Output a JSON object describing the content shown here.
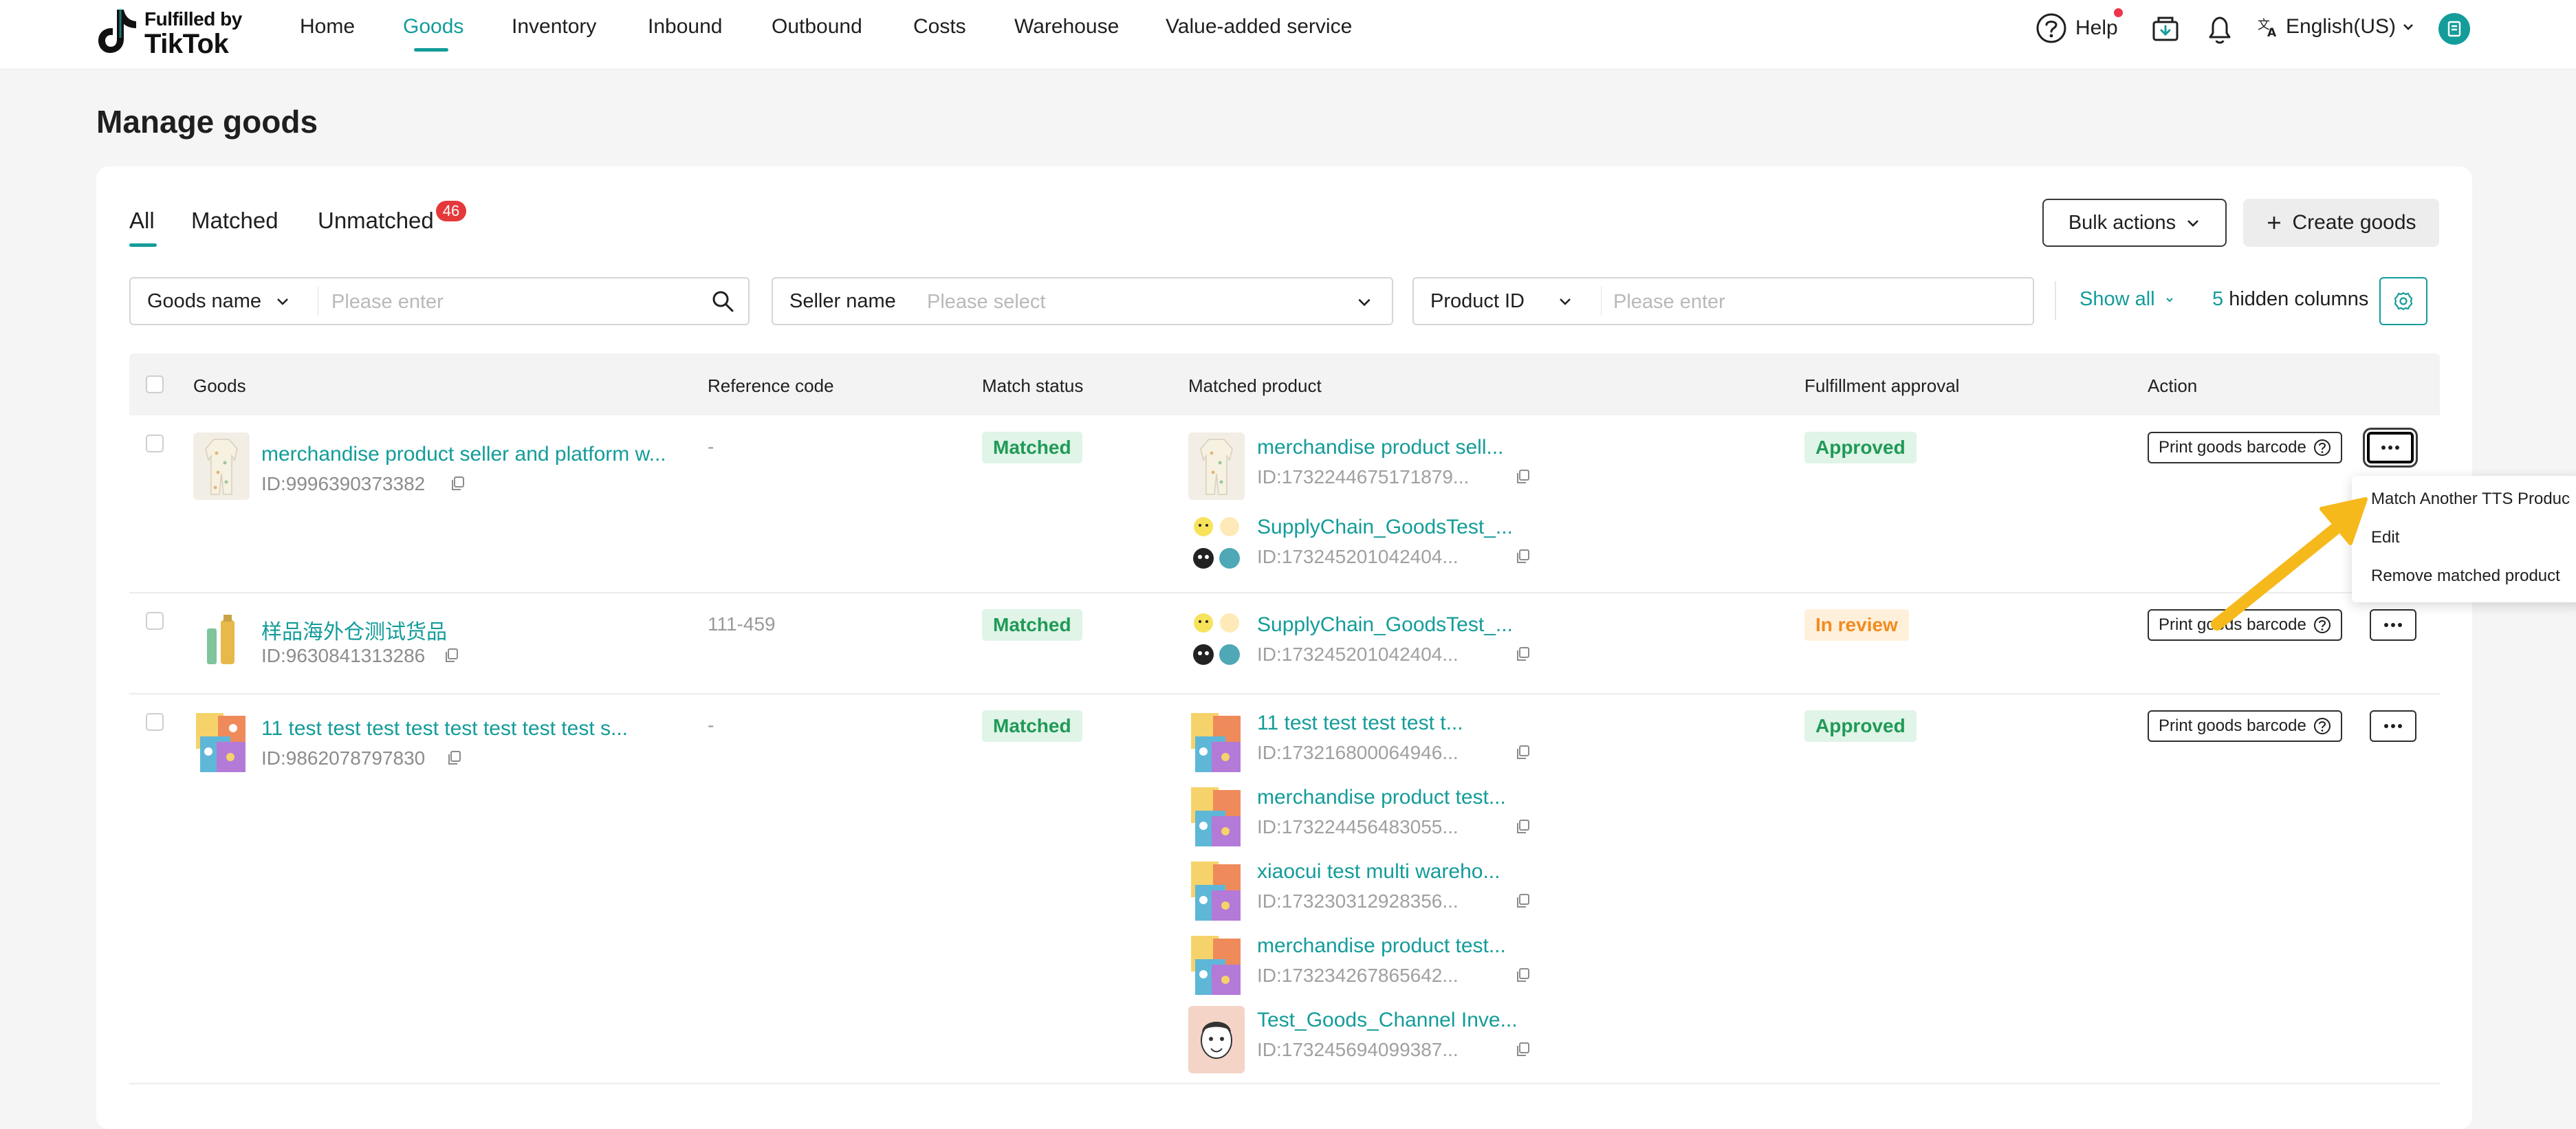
{
  "brand": {
    "line1": "Fulfilled by",
    "line2": "TikTok"
  },
  "nav": {
    "items": [
      "Home",
      "Goods",
      "Inventory",
      "Inbound",
      "Outbound",
      "Costs",
      "Warehouse",
      "Value-added service"
    ],
    "active": "Goods",
    "help": "Help",
    "language": "English(US)"
  },
  "page": {
    "title": "Manage goods"
  },
  "tabs": {
    "all": "All",
    "matched": "Matched",
    "unmatched": "Unmatched",
    "unmatched_count": "46"
  },
  "actions": {
    "bulk": "Bulk actions",
    "create": "Create goods"
  },
  "filters": {
    "goods_field": "Goods name",
    "goods_placeholder": "Please enter",
    "seller_field": "Seller name",
    "seller_placeholder": "Please select",
    "product_field": "Product ID",
    "product_placeholder": "Please enter",
    "show_all": "Show all",
    "hidden_count": "5",
    "hidden_label": "hidden columns"
  },
  "table": {
    "columns": [
      "Goods",
      "Reference code",
      "Match status",
      "Matched product",
      "Fulfillment approval",
      "Action"
    ],
    "print_label": "Print goods barcode",
    "rows": [
      {
        "goods_name": "merchandise product seller and platform w...",
        "goods_id": "ID:9996390373382",
        "reference_code": "-",
        "match_status": "Matched",
        "approval": "Approved",
        "matched": [
          {
            "name": "merchandise product sell...",
            "id": "ID:1732244675171879..."
          },
          {
            "name": "SupplyChain_GoodsTest_...",
            "id": "ID:173245201042404..."
          }
        ]
      },
      {
        "goods_name": "样品海外仓测试货品",
        "goods_id": "ID:9630841313286",
        "reference_code": "111-459",
        "match_status": "Matched",
        "approval": "In review",
        "matched": [
          {
            "name": "SupplyChain_GoodsTest_...",
            "id": "ID:173245201042404..."
          }
        ]
      },
      {
        "goods_name": "11 test test test test test test test test s...",
        "goods_id": "ID:9862078797830",
        "reference_code": "-",
        "match_status": "Matched",
        "approval": "Approved",
        "matched": [
          {
            "name": "11 test test test test t...",
            "id": "ID:173216800064946..."
          },
          {
            "name": "merchandise product test...",
            "id": "ID:173224456483055..."
          },
          {
            "name": "xiaocui test multi wareho...",
            "id": "ID:173230312928356..."
          },
          {
            "name": "merchandise product test...",
            "id": "ID:173234267865642..."
          },
          {
            "name": "Test_Goods_Channel Inve...",
            "id": "ID:173245694099387..."
          }
        ]
      }
    ]
  },
  "dropdown_menu": {
    "items": [
      "Match Another TTS Produc",
      "Edit",
      "Remove matched product"
    ]
  },
  "colors": {
    "accent": "#139c9a",
    "approved": "#1f9a56",
    "in_review": "#f08c1e",
    "badge": "#e5383b",
    "arrow": "#f6b91c"
  }
}
